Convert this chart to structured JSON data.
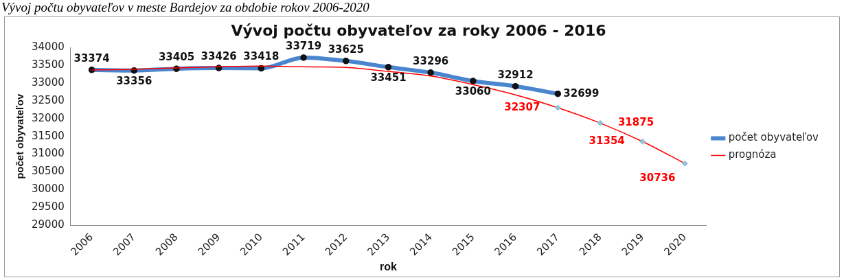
{
  "chart_data": {
    "type": "line",
    "title": "Vývoj počtu obyvateľov za roky 2006 - 2016",
    "annotations": [
      "Vývoj počtu obyvateľov v meste Bardejov za obdobie rokov 2006-2020"
    ],
    "xlabel": "rok",
    "ylabel": "počet obyvateľov",
    "categories": [
      "2006",
      "2007",
      "2008",
      "2009",
      "2010",
      "2011",
      "2012",
      "2013",
      "2014",
      "2015",
      "2016",
      "2017",
      "2018",
      "2019",
      "2020"
    ],
    "ylim": [
      29000,
      34000
    ],
    "yticks": [
      29000,
      29500,
      30000,
      30500,
      31000,
      31500,
      32000,
      32500,
      33000,
      33500,
      34000
    ],
    "grid": false,
    "legend": "right",
    "series": [
      {
        "name": "počet obyvateľov",
        "color": "#4a86d0",
        "marker": "circle",
        "values": [
          33374,
          33356,
          33405,
          33426,
          33418,
          33719,
          33625,
          33451,
          33296,
          33060,
          32912,
          32699,
          null,
          null,
          null
        ],
        "value_labels": [
          "33374",
          "33356",
          "33405",
          "33426",
          "33418",
          "33719",
          "33625",
          "33451",
          "33296",
          "33060",
          "32912",
          "32699",
          null,
          null,
          null
        ]
      },
      {
        "name": "prognóza",
        "color": "#ff0000",
        "marker": "none",
        "values": [
          33370,
          33390,
          33430,
          33460,
          33480,
          33460,
          33440,
          33330,
          33200,
          32960,
          32670,
          32307,
          31875,
          31354,
          30736
        ],
        "value_labels": [
          null,
          null,
          null,
          null,
          null,
          null,
          null,
          null,
          null,
          null,
          null,
          "32307",
          "31875",
          "31354",
          "30736"
        ]
      },
      {
        "type": "scatter",
        "color": "#8fc3d9",
        "marker": "diamond",
        "values": [
          null,
          null,
          null,
          null,
          null,
          null,
          null,
          null,
          null,
          null,
          null,
          32307,
          31875,
          31354,
          30736
        ]
      }
    ]
  }
}
